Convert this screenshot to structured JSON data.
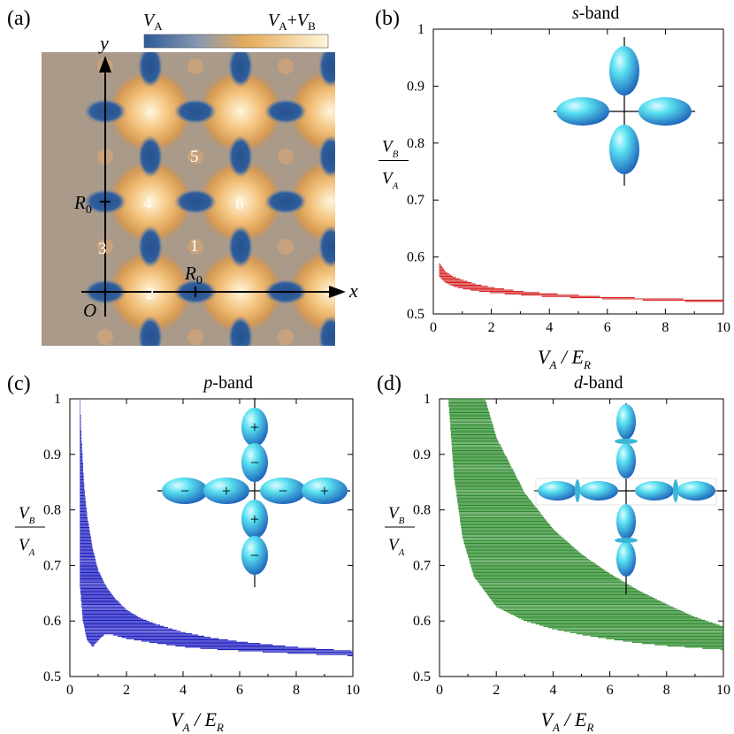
{
  "panel_a": {
    "label": "(a)",
    "colorbar_left": "V",
    "colorbar_left_sub": "A",
    "colorbar_right_1": "V",
    "colorbar_right_sub1": "A",
    "colorbar_right_plus": "+",
    "colorbar_right_2": "V",
    "colorbar_right_sub2": "B",
    "axis_x": "x",
    "axis_y": "y",
    "origin": "O",
    "r0_main": "R",
    "r0_sub": "0",
    "sites": [
      "1",
      "2",
      "3",
      "4",
      "5",
      "6"
    ]
  },
  "chart_data": [
    {
      "panel": "(b)",
      "type": "area",
      "title": "s-band",
      "title_italic": "s",
      "title_rest": "-band",
      "xlabel_main": "V",
      "xlabel_sub": "A",
      "xlabel_mid": "/ E",
      "xlabel_sub2": "R",
      "ylabel_top": "V",
      "ylabel_top_sub": "B",
      "ylabel_bot": "V",
      "ylabel_bot_sub": "A",
      "xlim": [
        0,
        10
      ],
      "ylim": [
        0.5,
        1.0
      ],
      "xticks": [
        "0",
        "2",
        "4",
        "6",
        "8",
        "10"
      ],
      "yticks": [
        "0.5",
        "0.6",
        "0.7",
        "0.8",
        "0.9",
        "1"
      ],
      "color": "#d42020",
      "upper": {
        "x": [
          0.2,
          0.4,
          0.7,
          1,
          1.5,
          2,
          3,
          4,
          5,
          6,
          8,
          10
        ],
        "y": [
          0.59,
          0.575,
          0.565,
          0.56,
          0.552,
          0.547,
          0.54,
          0.536,
          0.533,
          0.53,
          0.527,
          0.525
        ]
      },
      "lower": {
        "x": [
          0.2,
          0.4,
          0.7,
          1,
          1.5,
          2,
          3,
          4,
          5,
          6,
          8,
          10
        ],
        "y": [
          0.565,
          0.555,
          0.548,
          0.544,
          0.54,
          0.537,
          0.533,
          0.53,
          0.528,
          0.526,
          0.523,
          0.52
        ]
      }
    },
    {
      "panel": "(c)",
      "type": "area",
      "title": "p-band",
      "title_italic": "p",
      "title_rest": "-band",
      "xlabel_main": "V",
      "xlabel_sub": "A",
      "xlabel_mid": "/ E",
      "xlabel_sub2": "R",
      "ylabel_top": "V",
      "ylabel_top_sub": "B",
      "ylabel_bot": "V",
      "ylabel_bot_sub": "A",
      "xlim": [
        0,
        10
      ],
      "ylim": [
        0.5,
        1.0
      ],
      "xticks": [
        "0",
        "2",
        "4",
        "6",
        "8",
        "10"
      ],
      "yticks": [
        "0.5",
        "0.6",
        "0.7",
        "0.8",
        "0.9",
        "1"
      ],
      "color": "#1f1fc0",
      "upper": {
        "x": [
          0.35,
          0.4,
          0.5,
          0.6,
          0.8,
          1.0,
          1.3,
          1.6,
          2,
          2.5,
          3,
          4,
          5,
          6,
          8,
          10
        ],
        "y": [
          1.0,
          0.93,
          0.84,
          0.79,
          0.73,
          0.69,
          0.66,
          0.64,
          0.62,
          0.605,
          0.595,
          0.58,
          0.57,
          0.563,
          0.553,
          0.546
        ]
      },
      "lower": {
        "x": [
          0.35,
          0.45,
          0.6,
          0.8,
          1.0,
          1.2,
          1.5,
          2,
          3,
          4,
          5,
          6,
          8,
          10
        ],
        "y": [
          0.66,
          0.6,
          0.565,
          0.553,
          0.565,
          0.575,
          0.575,
          0.568,
          0.56,
          0.553,
          0.549,
          0.546,
          0.541,
          0.537
        ]
      },
      "signs": [
        "+",
        "−",
        "+",
        "−",
        "−",
        "+",
        "−",
        "+"
      ]
    },
    {
      "panel": "(d)",
      "type": "area",
      "title": "d-band",
      "title_italic": "d",
      "title_rest": "-band",
      "xlabel_main": "V",
      "xlabel_sub": "A",
      "xlabel_mid": "/ E",
      "xlabel_sub2": "R",
      "ylabel_top": "V",
      "ylabel_top_sub": "B",
      "ylabel_bot": "V",
      "ylabel_bot_sub": "A",
      "xlim": [
        0,
        10
      ],
      "ylim": [
        0.5,
        1.0
      ],
      "xticks": [
        "0",
        "2",
        "4",
        "6",
        "8",
        "10"
      ],
      "yticks": [
        "0.5",
        "0.6",
        "0.7",
        "0.8",
        "0.9",
        "1"
      ],
      "color": "#2e8b2e",
      "upper": {
        "x": [
          1.6,
          2,
          3,
          4,
          5,
          6,
          7,
          8,
          9,
          10
        ],
        "y": [
          1.0,
          0.93,
          0.83,
          0.765,
          0.72,
          0.685,
          0.655,
          0.63,
          0.607,
          0.59
        ]
      },
      "lower": {
        "x": [
          0.3,
          0.5,
          0.8,
          1.2,
          2,
          3,
          4,
          5,
          6,
          7,
          8,
          10
        ],
        "y": [
          1.0,
          0.86,
          0.75,
          0.68,
          0.625,
          0.6,
          0.585,
          0.575,
          0.567,
          0.56,
          0.555,
          0.548
        ]
      },
      "hole_left": {
        "x": [
          0.72,
          0.9,
          1.2,
          1.5,
          1.8,
          2.0,
          2.1
        ],
        "y": [
          1.0,
          0.88,
          0.76,
          0.7,
          0.66,
          0.645,
          0.64
        ]
      },
      "hole_right": {
        "x": [
          1.2,
          1.4,
          1.7,
          2.0,
          2.1
        ],
        "y": [
          1.0,
          0.86,
          0.75,
          0.68,
          0.64
        ]
      }
    }
  ]
}
